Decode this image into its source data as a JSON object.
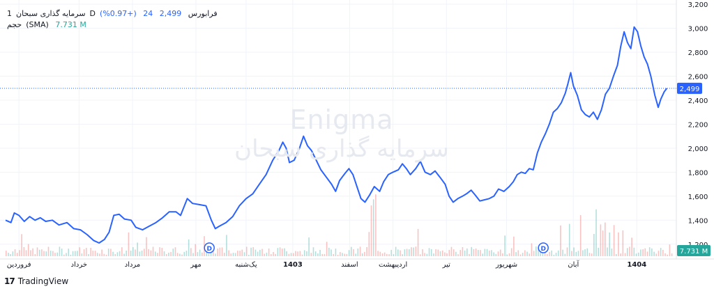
{
  "legend": {
    "symbol": "سرمایه گذاری سبحان",
    "exchange": "فرابورس",
    "interval": "D",
    "one": "1",
    "price": "2,499",
    "change": "24",
    "change_pct": "(+0.97%)",
    "volume_label": "حجم",
    "volume_sma": "(SMA)",
    "volume_value": "7.731 M"
  },
  "watermark": {
    "line1": "Enigma",
    "line2": "سرمایه گذاری سبحان"
  },
  "footer": {
    "brand": "TradingView",
    "logo": "tradingview-logo-icon"
  },
  "colors": {
    "line": "#2962ff",
    "vol_up": "#26a69a",
    "vol_down": "#ef5350",
    "grid": "#f0f3fa",
    "price_tag": "#2962ff",
    "vol_tag": "#26a69a"
  },
  "chart_data": {
    "type": "line",
    "ylim": [
      1100,
      3200
    ],
    "y_ticks": [
      "1,200",
      "1,400",
      "1,600",
      "1,800",
      "2,000",
      "2,200",
      "2,400",
      "2,600",
      "2,800",
      "3,000",
      "3,200"
    ],
    "last_price": 2499,
    "last_price_label": "2,499",
    "volume_label": "7.731 M",
    "x_labels": [
      {
        "t": 0.02,
        "label": "فروردین",
        "bold": false
      },
      {
        "t": 0.11,
        "label": "خرداد",
        "bold": false
      },
      {
        "t": 0.19,
        "label": "مرداد",
        "bold": false
      },
      {
        "t": 0.285,
        "label": "مهر",
        "bold": false
      },
      {
        "t": 0.36,
        "label": "یک‌شنبه",
        "bold": false
      },
      {
        "t": 0.43,
        "label": "1403",
        "bold": true
      },
      {
        "t": 0.515,
        "label": "اسفند",
        "bold": false
      },
      {
        "t": 0.58,
        "label": "اردیبهشت",
        "bold": false
      },
      {
        "t": 0.66,
        "label": "تیر",
        "bold": false
      },
      {
        "t": 0.75,
        "label": "شهریور",
        "bold": false
      },
      {
        "t": 0.85,
        "label": "آبان",
        "bold": false
      },
      {
        "t": 0.945,
        "label": "1404",
        "bold": true
      }
    ],
    "dividend_markers": [
      {
        "t": 0.305,
        "label": "D"
      },
      {
        "t": 0.805,
        "label": "D"
      }
    ],
    "series": [
      {
        "values": [
          [
            0.0,
            1400
          ],
          [
            0.008,
            1380
          ],
          [
            0.013,
            1460
          ],
          [
            0.02,
            1440
          ],
          [
            0.028,
            1390
          ],
          [
            0.036,
            1430
          ],
          [
            0.044,
            1400
          ],
          [
            0.052,
            1420
          ],
          [
            0.06,
            1390
          ],
          [
            0.07,
            1400
          ],
          [
            0.08,
            1360
          ],
          [
            0.092,
            1380
          ],
          [
            0.102,
            1330
          ],
          [
            0.112,
            1320
          ],
          [
            0.122,
            1280
          ],
          [
            0.132,
            1230
          ],
          [
            0.14,
            1210
          ],
          [
            0.148,
            1240
          ],
          [
            0.155,
            1300
          ],
          [
            0.162,
            1440
          ],
          [
            0.17,
            1450
          ],
          [
            0.178,
            1410
          ],
          [
            0.188,
            1400
          ],
          [
            0.195,
            1340
          ],
          [
            0.205,
            1320
          ],
          [
            0.215,
            1350
          ],
          [
            0.225,
            1380
          ],
          [
            0.235,
            1420
          ],
          [
            0.245,
            1470
          ],
          [
            0.255,
            1470
          ],
          [
            0.262,
            1440
          ],
          [
            0.272,
            1580
          ],
          [
            0.28,
            1540
          ],
          [
            0.29,
            1530
          ],
          [
            0.3,
            1520
          ],
          [
            0.308,
            1400
          ],
          [
            0.314,
            1330
          ],
          [
            0.32,
            1350
          ],
          [
            0.33,
            1380
          ],
          [
            0.34,
            1430
          ],
          [
            0.35,
            1520
          ],
          [
            0.36,
            1580
          ],
          [
            0.37,
            1620
          ],
          [
            0.38,
            1700
          ],
          [
            0.39,
            1780
          ],
          [
            0.4,
            1900
          ],
          [
            0.41,
            1990
          ],
          [
            0.415,
            2050
          ],
          [
            0.42,
            2000
          ],
          [
            0.425,
            1880
          ],
          [
            0.432,
            1900
          ],
          [
            0.44,
            2000
          ],
          [
            0.446,
            2100
          ],
          [
            0.452,
            2020
          ],
          [
            0.458,
            1980
          ],
          [
            0.465,
            1900
          ],
          [
            0.472,
            1820
          ],
          [
            0.48,
            1760
          ],
          [
            0.488,
            1700
          ],
          [
            0.494,
            1640
          ],
          [
            0.5,
            1730
          ],
          [
            0.508,
            1790
          ],
          [
            0.514,
            1830
          ],
          [
            0.52,
            1780
          ],
          [
            0.526,
            1680
          ],
          [
            0.532,
            1580
          ],
          [
            0.538,
            1550
          ],
          [
            0.545,
            1610
          ],
          [
            0.552,
            1680
          ],
          [
            0.56,
            1640
          ],
          [
            0.566,
            1720
          ],
          [
            0.573,
            1780
          ],
          [
            0.58,
            1800
          ],
          [
            0.588,
            1820
          ],
          [
            0.594,
            1870
          ],
          [
            0.6,
            1830
          ],
          [
            0.606,
            1780
          ],
          [
            0.614,
            1830
          ],
          [
            0.621,
            1890
          ],
          [
            0.628,
            1800
          ],
          [
            0.636,
            1780
          ],
          [
            0.643,
            1810
          ],
          [
            0.65,
            1760
          ],
          [
            0.658,
            1700
          ],
          [
            0.664,
            1600
          ],
          [
            0.67,
            1550
          ],
          [
            0.677,
            1580
          ],
          [
            0.684,
            1600
          ],
          [
            0.69,
            1620
          ],
          [
            0.697,
            1650
          ],
          [
            0.703,
            1610
          ],
          [
            0.71,
            1560
          ],
          [
            0.717,
            1570
          ],
          [
            0.724,
            1580
          ],
          [
            0.731,
            1600
          ],
          [
            0.738,
            1660
          ],
          [
            0.746,
            1640
          ],
          [
            0.754,
            1680
          ],
          [
            0.76,
            1720
          ],
          [
            0.766,
            1780
          ],
          [
            0.772,
            1800
          ],
          [
            0.778,
            1790
          ],
          [
            0.784,
            1830
          ],
          [
            0.79,
            1820
          ],
          [
            0.796,
            1960
          ],
          [
            0.802,
            2050
          ],
          [
            0.808,
            2120
          ],
          [
            0.814,
            2200
          ],
          [
            0.82,
            2300
          ],
          [
            0.826,
            2330
          ],
          [
            0.832,
            2380
          ],
          [
            0.838,
            2460
          ],
          [
            0.842,
            2540
          ],
          [
            0.846,
            2630
          ],
          [
            0.85,
            2520
          ],
          [
            0.856,
            2440
          ],
          [
            0.862,
            2320
          ],
          [
            0.868,
            2280
          ],
          [
            0.874,
            2260
          ],
          [
            0.88,
            2300
          ],
          [
            0.886,
            2240
          ],
          [
            0.892,
            2320
          ],
          [
            0.898,
            2450
          ],
          [
            0.904,
            2500
          ],
          [
            0.91,
            2600
          ],
          [
            0.916,
            2690
          ],
          [
            0.921,
            2850
          ],
          [
            0.926,
            2970
          ],
          [
            0.931,
            2880
          ],
          [
            0.936,
            2830
          ],
          [
            0.941,
            3010
          ],
          [
            0.946,
            2970
          ],
          [
            0.951,
            2850
          ],
          [
            0.956,
            2760
          ],
          [
            0.961,
            2700
          ],
          [
            0.966,
            2600
          ],
          [
            0.972,
            2440
          ],
          [
            0.977,
            2340
          ],
          [
            0.981,
            2410
          ],
          [
            0.986,
            2470
          ],
          [
            0.99,
            2499
          ]
        ]
      }
    ]
  }
}
